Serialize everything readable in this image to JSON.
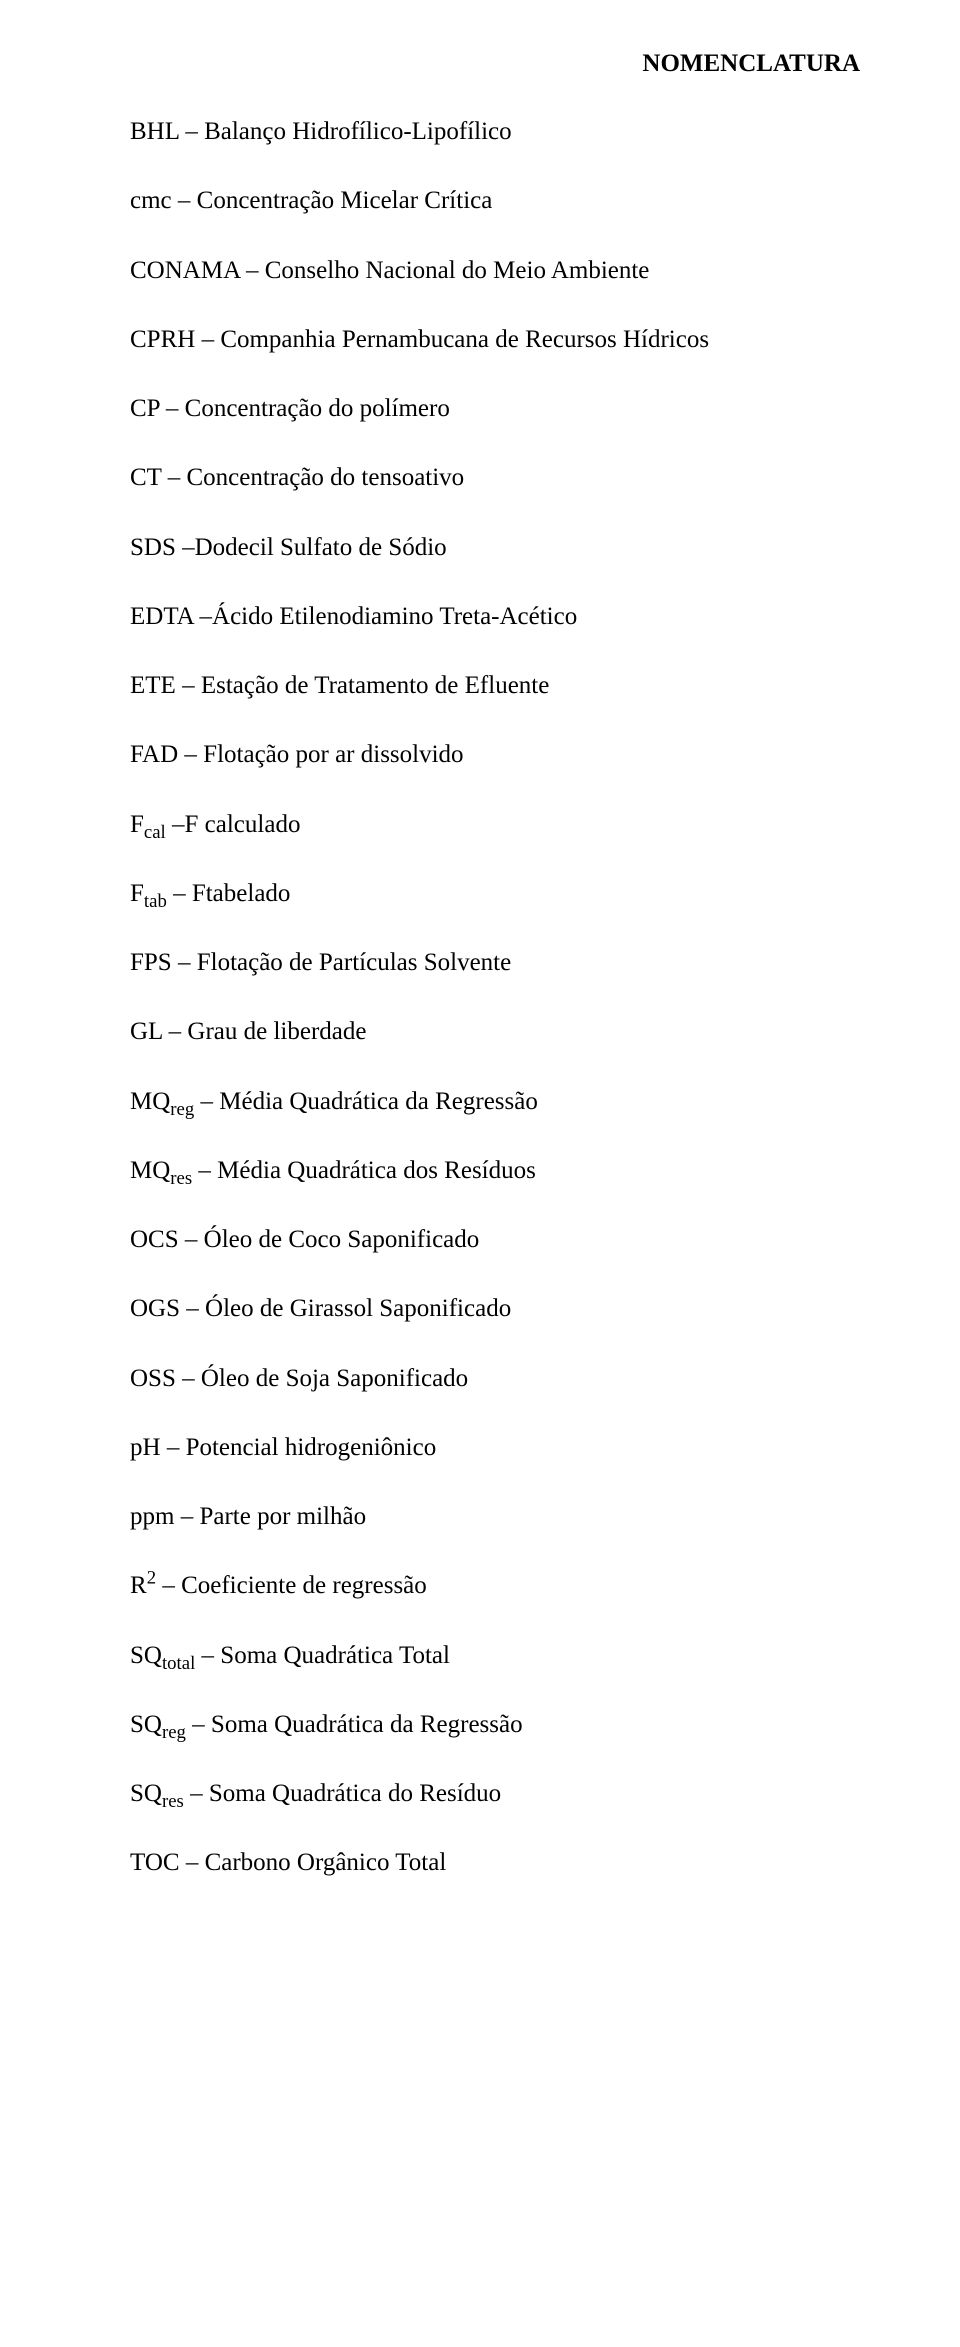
{
  "title": "NOMENCLATURA",
  "entries": [
    {
      "abbr": "BHL",
      "sub": "",
      "sup": "",
      "sep": " – ",
      "def": "Balanço Hidrofílico-Lipofílico"
    },
    {
      "abbr": "cmc",
      "sub": "",
      "sup": "",
      "sep": " – ",
      "def": "Concentração Micelar Crítica"
    },
    {
      "abbr": "CONAMA",
      "sub": "",
      "sup": "",
      "sep": " – ",
      "def": "Conselho Nacional do Meio Ambiente"
    },
    {
      "abbr": "CPRH",
      "sub": "",
      "sup": "",
      "sep": " – ",
      "def": "Companhia Pernambucana de Recursos Hídricos"
    },
    {
      "abbr": "CP",
      "sub": "",
      "sup": "",
      "sep": " – ",
      "def": "Concentração do polímero"
    },
    {
      "abbr": "CT",
      "sub": "",
      "sup": "",
      "sep": " – ",
      "def": "Concentração do tensoativo"
    },
    {
      "abbr": "SDS",
      "sub": "",
      "sup": "",
      "sep": " –",
      "def": "Dodecil Sulfato de Sódio"
    },
    {
      "abbr": "EDTA",
      "sub": "",
      "sup": "",
      "sep": " –",
      "def": "Ácido Etilenodiamino Treta-Acético"
    },
    {
      "abbr": "ETE",
      "sub": "",
      "sup": "",
      "sep": " – ",
      "def": "Estação de Tratamento de Efluente"
    },
    {
      "abbr": "FAD",
      "sub": "",
      "sup": "",
      "sep": " – ",
      "def": "Flotação por ar dissolvido"
    },
    {
      "abbr": "F",
      "sub": "cal",
      "sup": "",
      "sep": " –",
      "def": "F calculado"
    },
    {
      "abbr": "F",
      "sub": "tab",
      "sup": "",
      "sep": " – ",
      "def": "Ftabelado"
    },
    {
      "abbr": "FPS",
      "sub": "",
      "sup": "",
      "sep": " – ",
      "def": "Flotação de Partículas Solvente"
    },
    {
      "abbr": "GL",
      "sub": "",
      "sup": "",
      "sep": " – ",
      "def": "Grau de liberdade"
    },
    {
      "abbr": "MQ",
      "sub": "reg",
      "sup": "",
      "sep": " – ",
      "def": "Média Quadrática da Regressão"
    },
    {
      "abbr": "MQ",
      "sub": "res",
      "sup": "",
      "sep": " – ",
      "def": "Média Quadrática dos Resíduos"
    },
    {
      "abbr": "OCS",
      "sub": "",
      "sup": "",
      "sep": " – ",
      "def": "Óleo de Coco Saponificado"
    },
    {
      "abbr": "OGS",
      "sub": "",
      "sup": "",
      "sep": " – ",
      "def": "Óleo de Girassol Saponificado"
    },
    {
      "abbr": "OSS",
      "sub": "",
      "sup": "",
      "sep": " – ",
      "def": "Óleo de Soja Saponificado"
    },
    {
      "abbr": "pH",
      "sub": "",
      "sup": "",
      "sep": " – ",
      "def": "Potencial hidrogeniônico"
    },
    {
      "abbr": "ppm",
      "sub": "",
      "sup": "",
      "sep": " – ",
      "def": "Parte por milhão"
    },
    {
      "abbr": "R",
      "sub": "",
      "sup": "2",
      "sep": " – ",
      "def": "Coeficiente de regressão"
    },
    {
      "abbr": "SQ",
      "sub": "total",
      "sup": "",
      "sep": " – ",
      "def": "Soma Quadrática Total"
    },
    {
      "abbr": "SQ",
      "sub": "reg",
      "sup": "",
      "sep": " – ",
      "def": "Soma Quadrática da Regressão"
    },
    {
      "abbr": "SQ",
      "sub": "res",
      "sup": "",
      "sep": " – ",
      "def": "Soma Quadrática do Resíduo"
    },
    {
      "abbr": "TOC",
      "sub": "",
      "sup": "",
      "sep": " – ",
      "def": "Carbono Orgânico Total"
    }
  ]
}
